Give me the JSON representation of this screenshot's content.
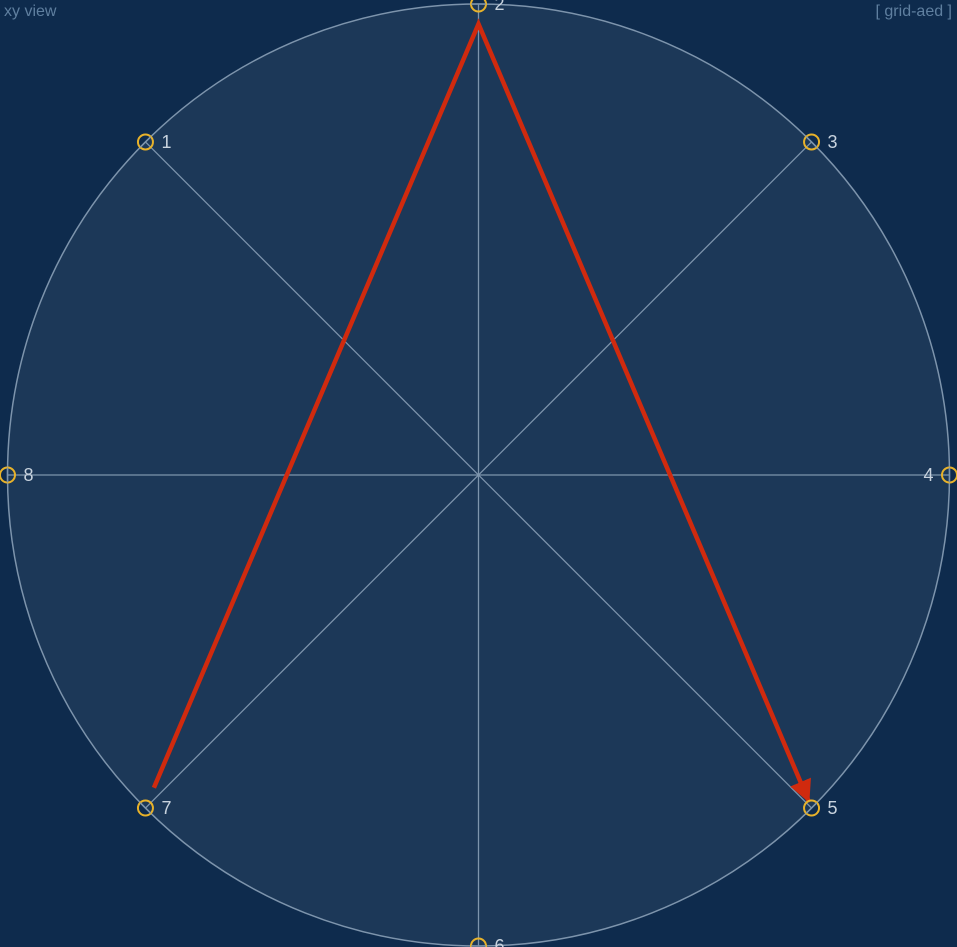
{
  "header": {
    "view_label": "xy view",
    "grid_label": "[ grid-aed ]"
  },
  "diagram": {
    "colors": {
      "background": "#0e2b4d",
      "disc_fill": "#1c3858",
      "spoke_stroke": "#7d94ac",
      "node_stroke": "#e8b22a",
      "path_stroke": "#d02a0e",
      "label_text": "#c8d3de"
    },
    "nodes": [
      {
        "label": "1"
      },
      {
        "label": "2"
      },
      {
        "label": "3"
      },
      {
        "label": "4"
      },
      {
        "label": "5"
      },
      {
        "label": "6"
      },
      {
        "label": "7"
      },
      {
        "label": "8"
      }
    ],
    "path_sequence": [
      "7",
      "2",
      "5"
    ],
    "path_end_marker": "arrow"
  }
}
